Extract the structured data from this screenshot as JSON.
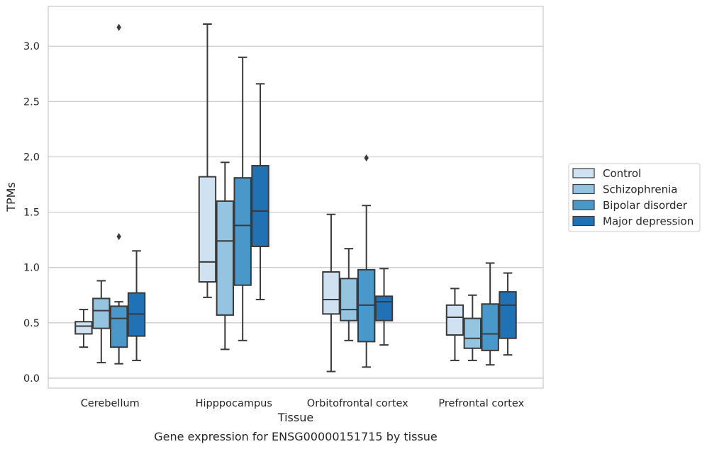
{
  "chart_data": {
    "type": "box",
    "xlabel": "Tissue",
    "ylabel": "TPMs",
    "caption": "Gene expression for ENSG00000151715 by tissue",
    "ylim": [
      -0.09,
      3.36
    ],
    "yticks": [
      0.0,
      0.5,
      1.0,
      1.5,
      2.0,
      2.5,
      3.0
    ],
    "ytick_labels": [
      "0.0",
      "0.5",
      "1.0",
      "1.5",
      "2.0",
      "2.5",
      "3.0"
    ],
    "grid": "horizontal",
    "legend_position": "right-outside",
    "categories": [
      "Cerebellum",
      "Hipppocampus",
      "Orbitofrontal cortex",
      "Prefrontal cortex"
    ],
    "series": [
      {
        "name": "Control",
        "color": "#d0e1f2",
        "boxes": [
          {
            "whislo": 0.28,
            "q1": 0.4,
            "med": 0.47,
            "q3": 0.51,
            "whishi": 0.62,
            "fliers": []
          },
          {
            "whislo": 0.73,
            "q1": 0.87,
            "med": 1.05,
            "q3": 1.82,
            "whishi": 3.2,
            "fliers": []
          },
          {
            "whislo": 0.06,
            "q1": 0.58,
            "med": 0.71,
            "q3": 0.96,
            "whishi": 1.48,
            "fliers": []
          },
          {
            "whislo": 0.16,
            "q1": 0.39,
            "med": 0.55,
            "q3": 0.66,
            "whishi": 0.81,
            "fliers": []
          }
        ]
      },
      {
        "name": "Schizophrenia",
        "color": "#94c4df",
        "boxes": [
          {
            "whislo": 0.14,
            "q1": 0.45,
            "med": 0.61,
            "q3": 0.72,
            "whishi": 0.88,
            "fliers": []
          },
          {
            "whislo": 0.26,
            "q1": 0.57,
            "med": 1.24,
            "q3": 1.6,
            "whishi": 1.95,
            "fliers": []
          },
          {
            "whislo": 0.34,
            "q1": 0.52,
            "med": 0.62,
            "q3": 0.9,
            "whishi": 1.17,
            "fliers": []
          },
          {
            "whislo": 0.16,
            "q1": 0.27,
            "med": 0.36,
            "q3": 0.54,
            "whishi": 0.75,
            "fliers": []
          }
        ]
      },
      {
        "name": "Bipolar disorder",
        "color": "#4a98c9",
        "boxes": [
          {
            "whislo": 0.13,
            "q1": 0.28,
            "med": 0.54,
            "q3": 0.65,
            "whishi": 0.69,
            "fliers": [
              1.28,
              3.17
            ]
          },
          {
            "whislo": 0.34,
            "q1": 0.84,
            "med": 1.38,
            "q3": 1.81,
            "whishi": 2.9,
            "fliers": []
          },
          {
            "whislo": 0.1,
            "q1": 0.33,
            "med": 0.66,
            "q3": 0.98,
            "whishi": 1.56,
            "fliers": [
              1.99
            ]
          },
          {
            "whislo": 0.12,
            "q1": 0.25,
            "med": 0.4,
            "q3": 0.67,
            "whishi": 1.04,
            "fliers": []
          }
        ]
      },
      {
        "name": "Major depression",
        "color": "#2171b5",
        "boxes": [
          {
            "whislo": 0.16,
            "q1": 0.38,
            "med": 0.58,
            "q3": 0.77,
            "whishi": 1.15,
            "fliers": []
          },
          {
            "whislo": 0.71,
            "q1": 1.19,
            "med": 1.51,
            "q3": 1.92,
            "whishi": 2.66,
            "fliers": []
          },
          {
            "whislo": 0.3,
            "q1": 0.52,
            "med": 0.69,
            "q3": 0.74,
            "whishi": 0.99,
            "fliers": []
          },
          {
            "whislo": 0.21,
            "q1": 0.36,
            "med": 0.66,
            "q3": 0.78,
            "whishi": 0.95,
            "fliers": []
          }
        ]
      }
    ]
  },
  "style": {
    "frame_color": "#cccccc",
    "grid_color": "#cccccc",
    "line_color": "#3a3a3a",
    "text_color": "#262626"
  }
}
